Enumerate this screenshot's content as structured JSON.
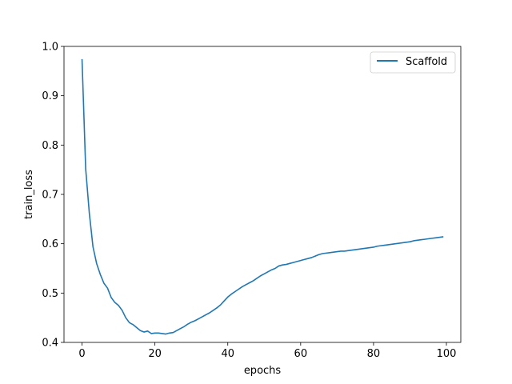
{
  "chart_data": {
    "type": "line",
    "title": "",
    "xlabel": "epochs",
    "ylabel": "train_loss",
    "xlim": [
      -4.95,
      103.95
    ],
    "ylim": [
      0.4,
      1.0
    ],
    "xticks": [
      0,
      20,
      40,
      60,
      80,
      100
    ],
    "yticks": [
      0.4,
      0.5,
      0.6,
      0.7,
      0.8,
      0.9,
      1.0
    ],
    "xtick_labels": [
      "0",
      "20",
      "40",
      "60",
      "80",
      "100"
    ],
    "ytick_labels": [
      "0.4",
      "0.5",
      "0.6",
      "0.7",
      "0.8",
      "0.9",
      "1.0"
    ],
    "grid": false,
    "legend_position": "top-right",
    "series": [
      {
        "name": "Scaffold",
        "color": "#1f77b4",
        "x": [
          0,
          1,
          2,
          3,
          4,
          5,
          6,
          7,
          8,
          9,
          10,
          11,
          12,
          13,
          14,
          15,
          16,
          17,
          18,
          19,
          20,
          21,
          22,
          23,
          24,
          25,
          26,
          27,
          28,
          29,
          30,
          31,
          32,
          33,
          34,
          35,
          36,
          37,
          38,
          39,
          40,
          41,
          42,
          43,
          44,
          45,
          46,
          47,
          48,
          49,
          50,
          51,
          52,
          53,
          54,
          55,
          56,
          57,
          58,
          59,
          60,
          61,
          62,
          63,
          64,
          65,
          66,
          67,
          68,
          69,
          70,
          71,
          72,
          73,
          74,
          75,
          76,
          77,
          78,
          79,
          80,
          81,
          82,
          83,
          84,
          85,
          86,
          87,
          88,
          89,
          90,
          91,
          92,
          93,
          94,
          95,
          96,
          97,
          98,
          99
        ],
        "y": [
          0.973,
          0.752,
          0.662,
          0.594,
          0.56,
          0.538,
          0.52,
          0.51,
          0.491,
          0.481,
          0.475,
          0.465,
          0.45,
          0.44,
          0.436,
          0.43,
          0.424,
          0.421,
          0.423,
          0.418,
          0.419,
          0.419,
          0.418,
          0.417,
          0.419,
          0.42,
          0.424,
          0.428,
          0.432,
          0.437,
          0.441,
          0.444,
          0.448,
          0.452,
          0.456,
          0.46,
          0.465,
          0.47,
          0.476,
          0.484,
          0.492,
          0.498,
          0.503,
          0.508,
          0.513,
          0.517,
          0.521,
          0.525,
          0.53,
          0.535,
          0.539,
          0.543,
          0.547,
          0.55,
          0.555,
          0.557,
          0.558,
          0.56,
          0.562,
          0.564,
          0.566,
          0.568,
          0.57,
          0.572,
          0.575,
          0.578,
          0.58,
          0.581,
          0.582,
          0.583,
          0.584,
          0.585,
          0.585,
          0.586,
          0.587,
          0.588,
          0.589,
          0.59,
          0.591,
          0.592,
          0.593,
          0.595,
          0.596,
          0.597,
          0.598,
          0.599,
          0.6,
          0.601,
          0.602,
          0.603,
          0.604,
          0.606,
          0.607,
          0.608,
          0.609,
          0.61,
          0.611,
          0.612,
          0.613,
          0.614
        ]
      }
    ]
  }
}
